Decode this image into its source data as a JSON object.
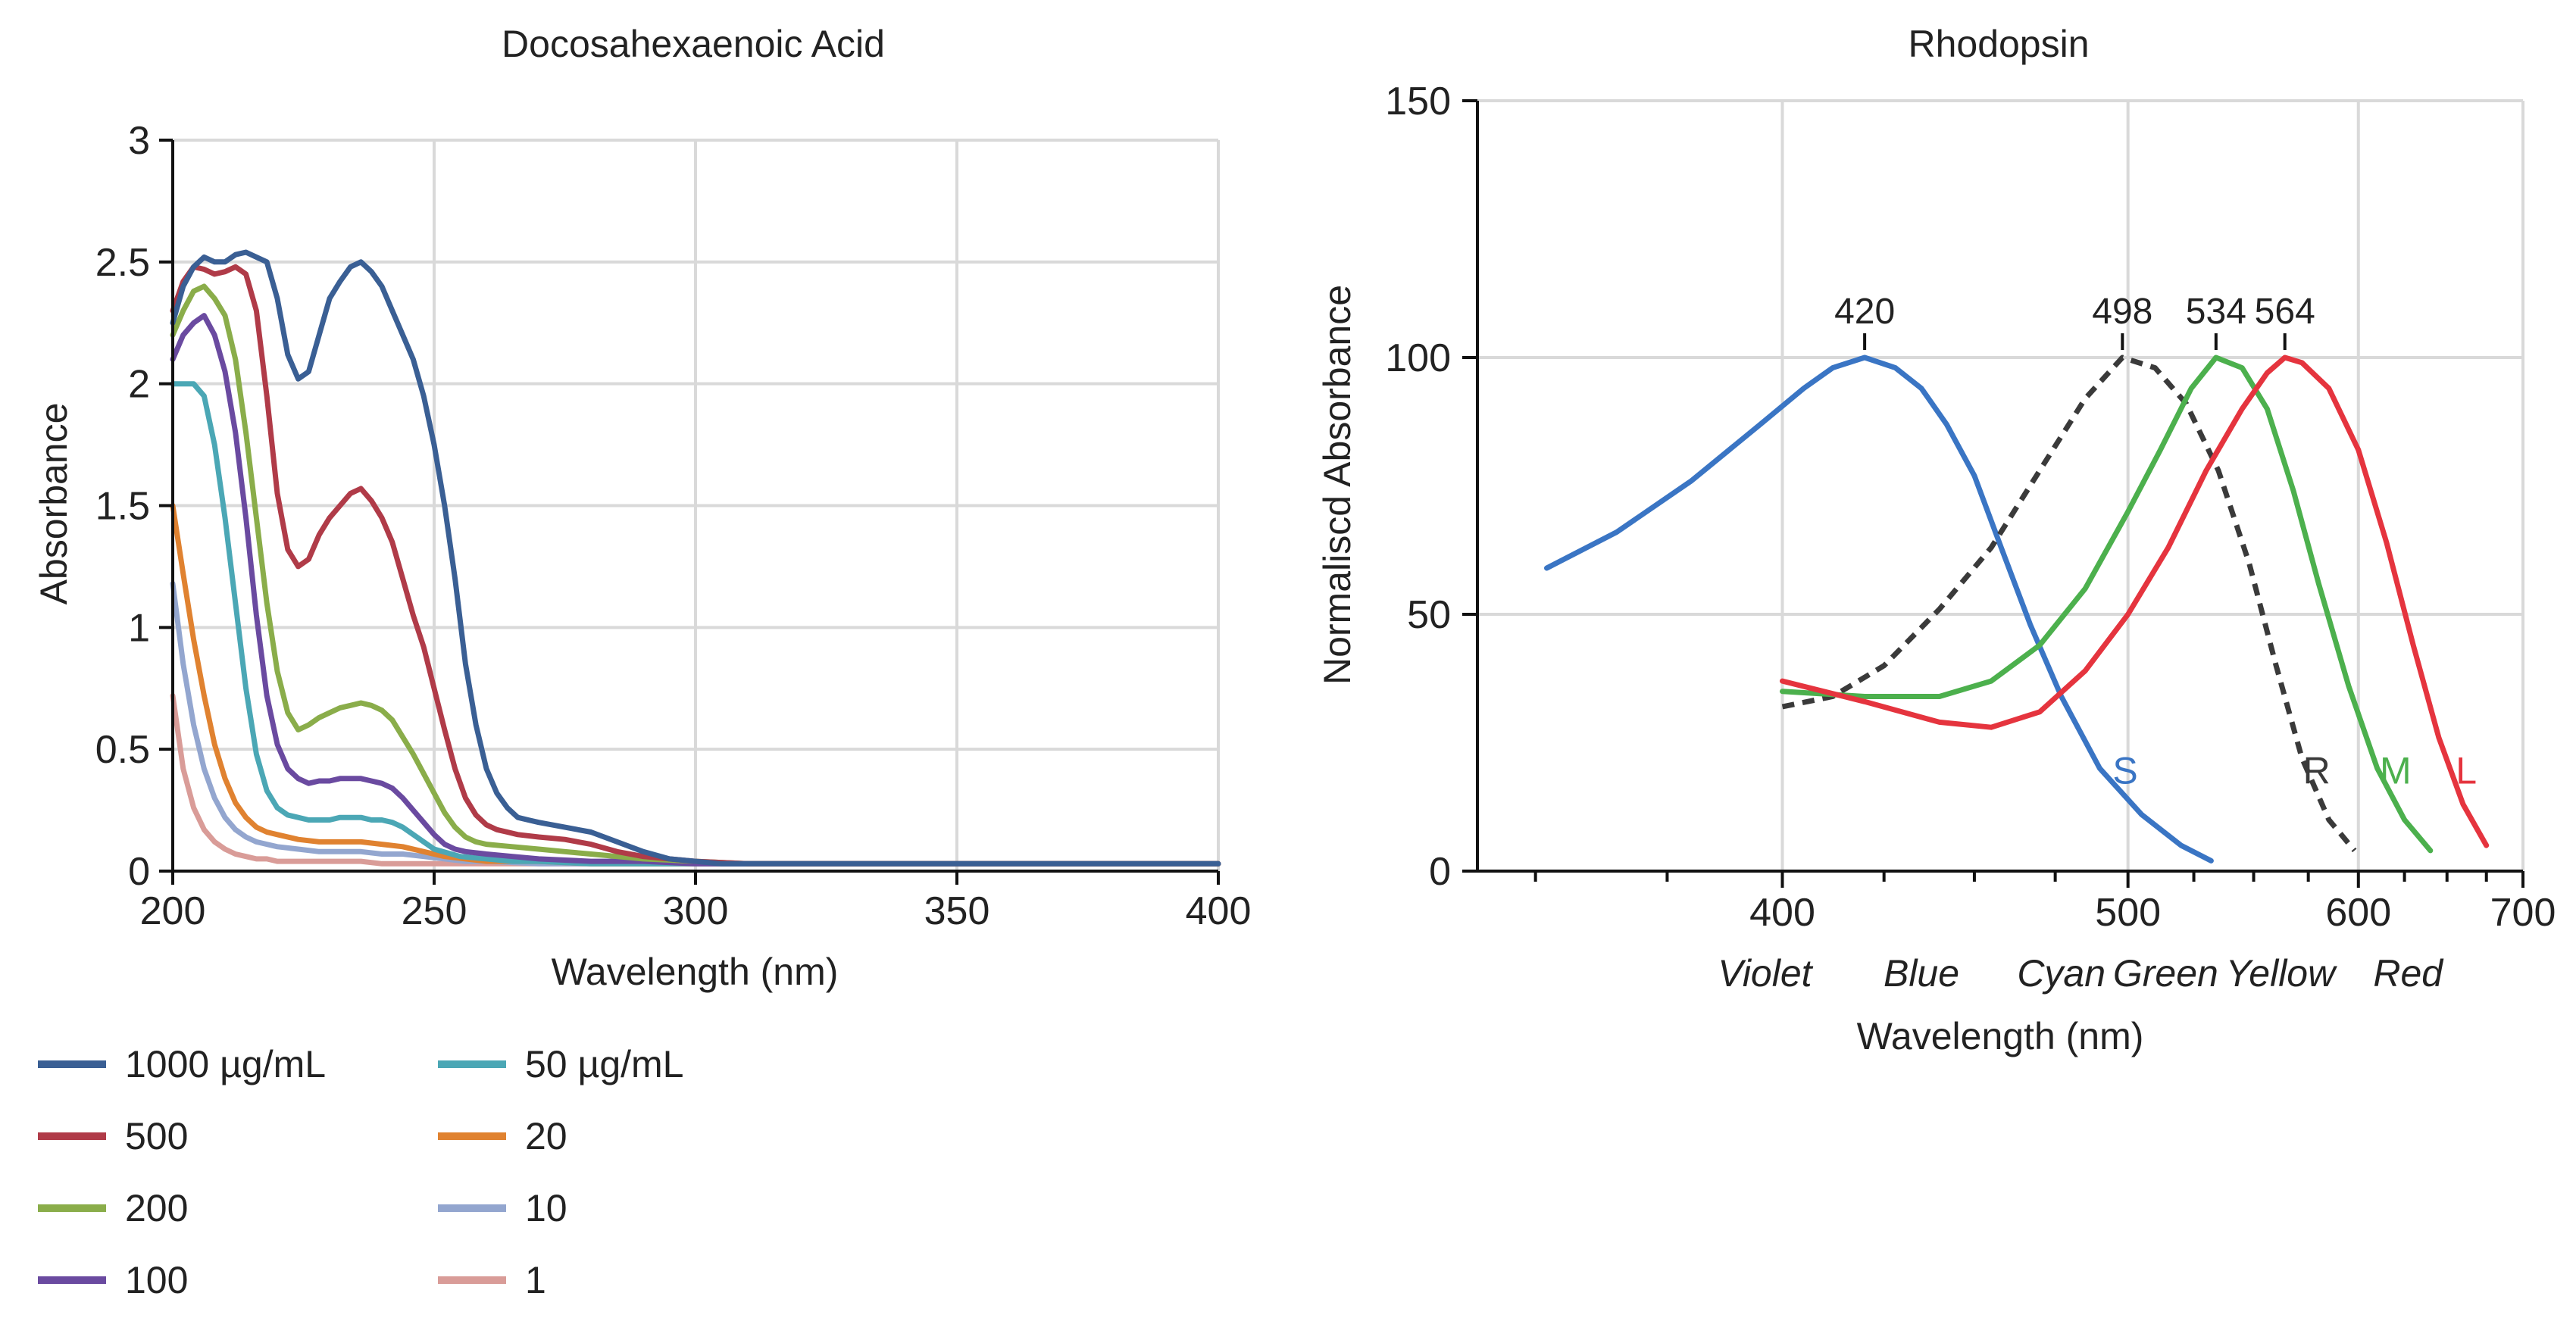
{
  "chart_data": [
    {
      "type": "line",
      "title": "Docosahexaenoic Acid",
      "xlabel": "Wavelength (nm)",
      "ylabel": "Absorbance",
      "xlim": [
        200,
        400
      ],
      "ylim": [
        0,
        3
      ],
      "grid": true,
      "xticks": [
        {
          "value": 200,
          "label": "200"
        },
        {
          "value": 250,
          "label": "250"
        },
        {
          "value": 300,
          "label": "300"
        },
        {
          "value": 350,
          "label": "350"
        },
        {
          "value": 400,
          "label": "400"
        }
      ],
      "yticks": [
        {
          "value": 0,
          "label": "0"
        },
        {
          "value": 0.5,
          "label": "0.5"
        },
        {
          "value": 1,
          "label": "1"
        },
        {
          "value": 1.5,
          "label": "1.5"
        },
        {
          "value": 2,
          "label": "2"
        },
        {
          "value": 2.5,
          "label": "2.5"
        },
        {
          "value": 3,
          "label": "3"
        }
      ],
      "legend_position": "bottom",
      "series": [
        {
          "name": "1000 µg/mL",
          "color": "#3a5f94",
          "x": [
            200,
            202,
            204,
            206,
            208,
            210,
            212,
            214,
            216,
            218,
            220,
            222,
            224,
            226,
            228,
            230,
            232,
            234,
            236,
            238,
            240,
            242,
            244,
            246,
            248,
            250,
            252,
            254,
            256,
            258,
            260,
            262,
            264,
            266,
            268,
            270,
            275,
            280,
            285,
            290,
            295,
            300,
            305,
            310,
            320,
            340,
            360,
            380,
            400
          ],
          "y": [
            2.25,
            2.4,
            2.48,
            2.52,
            2.5,
            2.5,
            2.53,
            2.54,
            2.52,
            2.5,
            2.35,
            2.12,
            2.02,
            2.05,
            2.2,
            2.35,
            2.42,
            2.48,
            2.5,
            2.46,
            2.4,
            2.3,
            2.2,
            2.1,
            1.95,
            1.75,
            1.5,
            1.2,
            0.85,
            0.6,
            0.42,
            0.32,
            0.26,
            0.22,
            0.21,
            0.2,
            0.18,
            0.16,
            0.12,
            0.08,
            0.05,
            0.04,
            0.03,
            0.03,
            0.03,
            0.03,
            0.03,
            0.03,
            0.03
          ]
        },
        {
          "name": "500",
          "color": "#b03b48",
          "x": [
            200,
            202,
            204,
            206,
            208,
            210,
            212,
            214,
            216,
            218,
            220,
            222,
            224,
            226,
            228,
            230,
            232,
            234,
            236,
            238,
            240,
            242,
            244,
            246,
            248,
            250,
            252,
            254,
            256,
            258,
            260,
            262,
            264,
            266,
            270,
            275,
            280,
            285,
            290,
            300,
            310,
            320,
            340,
            360,
            380,
            400
          ],
          "y": [
            2.3,
            2.42,
            2.48,
            2.47,
            2.45,
            2.46,
            2.48,
            2.45,
            2.3,
            1.95,
            1.55,
            1.32,
            1.25,
            1.28,
            1.38,
            1.45,
            1.5,
            1.55,
            1.57,
            1.52,
            1.45,
            1.35,
            1.2,
            1.05,
            0.92,
            0.75,
            0.58,
            0.42,
            0.3,
            0.23,
            0.19,
            0.17,
            0.16,
            0.15,
            0.14,
            0.13,
            0.11,
            0.08,
            0.06,
            0.04,
            0.03,
            0.03,
            0.03,
            0.03,
            0.03,
            0.03
          ]
        },
        {
          "name": "200",
          "color": "#8aad4a",
          "x": [
            200,
            202,
            204,
            206,
            208,
            210,
            212,
            214,
            216,
            218,
            220,
            222,
            224,
            226,
            228,
            230,
            232,
            234,
            236,
            238,
            240,
            242,
            244,
            246,
            248,
            250,
            252,
            254,
            256,
            258,
            260,
            265,
            270,
            275,
            280,
            290,
            300,
            310,
            320,
            340,
            360,
            380,
            400
          ],
          "y": [
            2.2,
            2.3,
            2.38,
            2.4,
            2.35,
            2.28,
            2.1,
            1.8,
            1.45,
            1.1,
            0.82,
            0.65,
            0.58,
            0.6,
            0.63,
            0.65,
            0.67,
            0.68,
            0.69,
            0.68,
            0.66,
            0.62,
            0.55,
            0.48,
            0.4,
            0.32,
            0.24,
            0.18,
            0.14,
            0.12,
            0.11,
            0.1,
            0.09,
            0.08,
            0.07,
            0.05,
            0.04,
            0.03,
            0.03,
            0.03,
            0.03,
            0.03,
            0.03
          ]
        },
        {
          "name": "100",
          "color": "#6a4aa0",
          "x": [
            200,
            202,
            204,
            206,
            208,
            210,
            212,
            214,
            216,
            218,
            220,
            222,
            224,
            226,
            228,
            230,
            232,
            234,
            236,
            238,
            240,
            242,
            244,
            246,
            248,
            250,
            252,
            254,
            256,
            260,
            265,
            270,
            280,
            290,
            300,
            320,
            340,
            360,
            380,
            400
          ],
          "y": [
            2.1,
            2.2,
            2.25,
            2.28,
            2.2,
            2.05,
            1.8,
            1.45,
            1.05,
            0.72,
            0.52,
            0.42,
            0.38,
            0.36,
            0.37,
            0.37,
            0.38,
            0.38,
            0.38,
            0.37,
            0.36,
            0.34,
            0.3,
            0.25,
            0.2,
            0.15,
            0.11,
            0.09,
            0.08,
            0.07,
            0.06,
            0.05,
            0.04,
            0.04,
            0.03,
            0.03,
            0.03,
            0.03,
            0.03,
            0.03
          ]
        },
        {
          "name": "50 µg/mL",
          "color": "#4ba7b5",
          "x": [
            200,
            202,
            204,
            206,
            208,
            210,
            212,
            214,
            216,
            218,
            220,
            222,
            224,
            226,
            228,
            230,
            232,
            234,
            236,
            238,
            240,
            242,
            244,
            246,
            248,
            250,
            255,
            260,
            265,
            270,
            280,
            290,
            300,
            320,
            340,
            360,
            380,
            400
          ],
          "y": [
            2.0,
            2.0,
            2.0,
            1.95,
            1.75,
            1.45,
            1.1,
            0.75,
            0.48,
            0.33,
            0.26,
            0.23,
            0.22,
            0.21,
            0.21,
            0.21,
            0.22,
            0.22,
            0.22,
            0.21,
            0.21,
            0.2,
            0.18,
            0.15,
            0.12,
            0.09,
            0.06,
            0.05,
            0.04,
            0.04,
            0.03,
            0.03,
            0.03,
            0.03,
            0.03,
            0.03,
            0.03,
            0.03
          ]
        },
        {
          "name": "20",
          "color": "#e08230",
          "x": [
            200,
            202,
            204,
            206,
            208,
            210,
            212,
            214,
            216,
            218,
            220,
            224,
            228,
            232,
            236,
            240,
            244,
            248,
            252,
            256,
            260,
            270,
            280,
            300,
            320,
            340,
            360,
            380,
            400
          ],
          "y": [
            1.5,
            1.22,
            0.95,
            0.72,
            0.52,
            0.38,
            0.28,
            0.22,
            0.18,
            0.16,
            0.15,
            0.13,
            0.12,
            0.12,
            0.12,
            0.11,
            0.1,
            0.08,
            0.06,
            0.05,
            0.04,
            0.04,
            0.03,
            0.03,
            0.03,
            0.03,
            0.03,
            0.03,
            0.03
          ]
        },
        {
          "name": "10",
          "color": "#93a6cf",
          "x": [
            200,
            202,
            204,
            206,
            208,
            210,
            212,
            214,
            216,
            218,
            220,
            224,
            228,
            232,
            236,
            240,
            244,
            248,
            252,
            256,
            260,
            270,
            280,
            300,
            320,
            340,
            360,
            380,
            400
          ],
          "y": [
            1.18,
            0.85,
            0.6,
            0.42,
            0.3,
            0.22,
            0.17,
            0.14,
            0.12,
            0.11,
            0.1,
            0.09,
            0.08,
            0.08,
            0.08,
            0.07,
            0.07,
            0.06,
            0.05,
            0.04,
            0.04,
            0.03,
            0.03,
            0.03,
            0.03,
            0.03,
            0.03,
            0.03,
            0.03
          ]
        },
        {
          "name": "1",
          "color": "#d99c98",
          "x": [
            200,
            202,
            204,
            206,
            208,
            210,
            212,
            214,
            216,
            218,
            220,
            224,
            228,
            232,
            236,
            240,
            250,
            260,
            280,
            300,
            320,
            340,
            360,
            380,
            400
          ],
          "y": [
            0.72,
            0.42,
            0.26,
            0.17,
            0.12,
            0.09,
            0.07,
            0.06,
            0.05,
            0.05,
            0.04,
            0.04,
            0.04,
            0.04,
            0.04,
            0.03,
            0.03,
            0.03,
            0.03,
            0.03,
            0.03,
            0.03,
            0.03,
            0.03,
            0.03
          ]
        }
      ]
    },
    {
      "type": "line",
      "title": "Rhodopsin",
      "xlabel": "Wavelength (nm)",
      "ylabel": "Normaliscd Absorbance",
      "xlim": [
        340,
        700
      ],
      "ylim": [
        0,
        150
      ],
      "grid": true,
      "x_scale": "reciprocal (wavenumber)",
      "xticks": [
        {
          "value": 400,
          "label": "400"
        },
        {
          "value": 500,
          "label": "500"
        },
        {
          "value": 600,
          "label": "600"
        },
        {
          "value": 700,
          "label": "700"
        }
      ],
      "minor_xticks": [
        350,
        375,
        425,
        450,
        475,
        525,
        550,
        575,
        625,
        650,
        675
      ],
      "yticks": [
        {
          "value": 0,
          "label": "0"
        },
        {
          "value": 50,
          "label": "50"
        },
        {
          "value": 100,
          "label": "100"
        },
        {
          "value": 150,
          "label": "150"
        }
      ],
      "color_labels": [
        {
          "label": "Violet",
          "x": 396
        },
        {
          "label": "Blue",
          "x": 435
        },
        {
          "label": "Cyan",
          "x": 477
        },
        {
          "label": "Green",
          "x": 514
        },
        {
          "label": "Yellow",
          "x": 562
        },
        {
          "label": "Red",
          "x": 627
        }
      ],
      "peak_labels": [
        {
          "label": "420",
          "x": 420,
          "y": 100
        },
        {
          "label": "498",
          "x": 498,
          "y": 100
        },
        {
          "label": "534",
          "x": 534,
          "y": 100
        },
        {
          "label": "564",
          "x": 564,
          "y": 100
        }
      ],
      "series": [
        {
          "name": "S",
          "color": "#3a75c4",
          "dash": false,
          "label_at": {
            "x": 499,
            "y": 20
          },
          "x": [
            352,
            365,
            380,
            395,
            405,
            412,
            420,
            428,
            435,
            442,
            450,
            458,
            467,
            477,
            490,
            505,
            520,
            532
          ],
          "y": [
            59,
            66,
            76,
            87,
            94,
            98,
            100,
            98,
            94,
            87,
            77,
            63,
            48,
            34,
            20,
            11,
            5,
            2
          ]
        },
        {
          "name": "R",
          "color": "#3a3a3a",
          "dash": true,
          "label_at": {
            "x": 579,
            "y": 20
          },
          "x": [
            400,
            412,
            425,
            440,
            455,
            470,
            485,
            498,
            510,
            522,
            535,
            548,
            560,
            572,
            585,
            598
          ],
          "y": [
            32,
            34,
            40,
            51,
            63,
            78,
            92,
            100,
            98,
            91,
            78,
            60,
            40,
            22,
            10,
            4
          ]
        },
        {
          "name": "M",
          "color": "#4cb04d",
          "dash": false,
          "label_at": {
            "x": 620,
            "y": 20
          },
          "x": [
            400,
            420,
            440,
            455,
            470,
            485,
            500,
            512,
            524,
            534,
            545,
            556,
            568,
            580,
            595,
            610,
            625,
            640
          ],
          "y": [
            35,
            34,
            34,
            37,
            44,
            55,
            70,
            82,
            94,
            100,
            98,
            90,
            74,
            56,
            36,
            20,
            10,
            4
          ]
        },
        {
          "name": "L",
          "color": "#e5343e",
          "dash": false,
          "label_at": {
            "x": 662,
            "y": 20
          },
          "x": [
            400,
            420,
            440,
            455,
            470,
            485,
            500,
            515,
            530,
            545,
            556,
            564,
            572,
            585,
            600,
            615,
            630,
            645,
            660,
            675
          ],
          "y": [
            37,
            33,
            29,
            28,
            31,
            39,
            50,
            63,
            78,
            90,
            97,
            100,
            99,
            94,
            82,
            64,
            44,
            26,
            13,
            5
          ]
        }
      ]
    }
  ],
  "legend": [
    {
      "label": "1000 µg/mL",
      "color": "#3a5f94"
    },
    {
      "label": "500",
      "color": "#b03b48"
    },
    {
      "label": "200",
      "color": "#8aad4a"
    },
    {
      "label": "100",
      "color": "#6a4aa0"
    },
    {
      "label": "50 µg/mL",
      "color": "#4ba7b5"
    },
    {
      "label": "20",
      "color": "#e08230"
    },
    {
      "label": "10",
      "color": "#93a6cf"
    },
    {
      "label": "1",
      "color": "#d99c98"
    }
  ]
}
